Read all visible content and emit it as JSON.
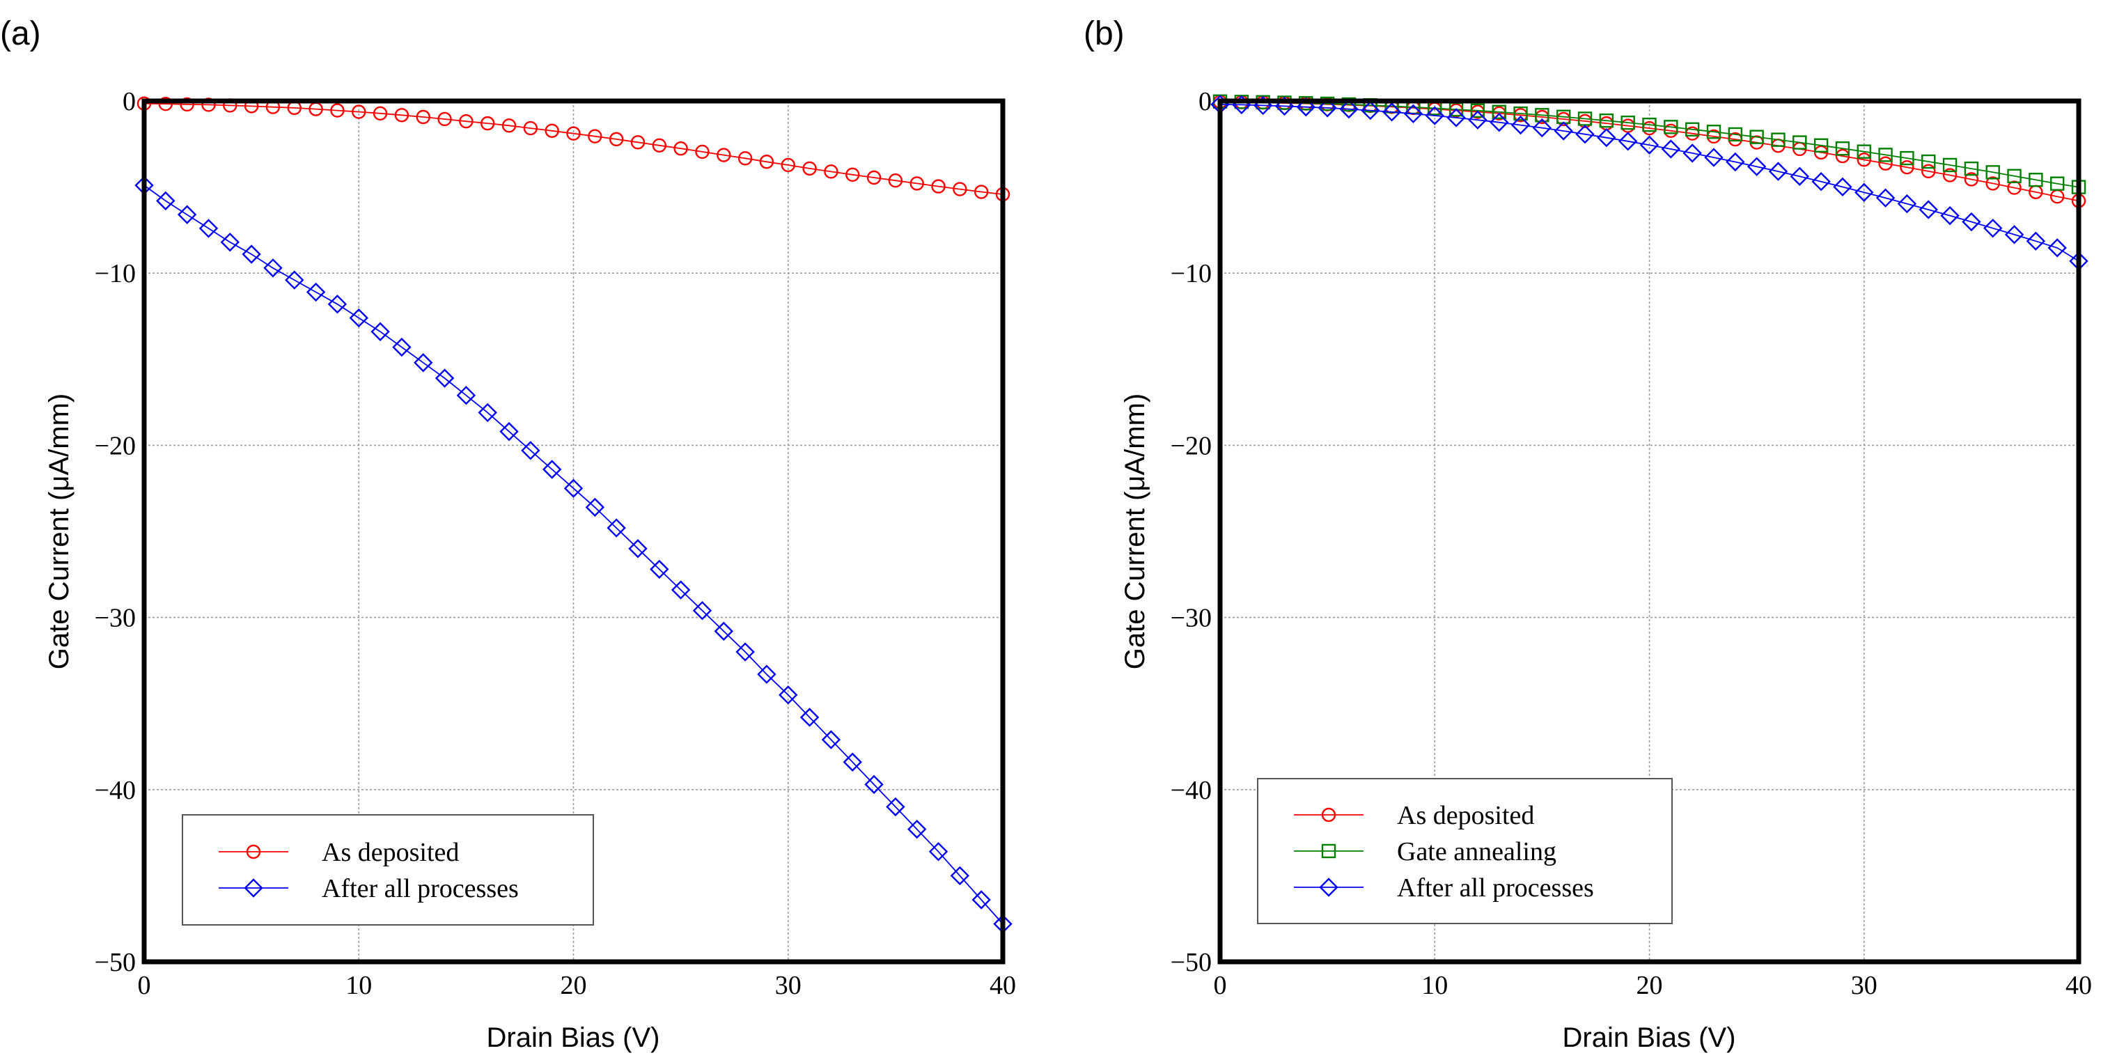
{
  "chart_data": [
    {
      "type": "line",
      "panel_label": "(a)",
      "xlabel": "Drain Bias (V)",
      "ylabel": "Gate Current (μA/mm)",
      "xlim": [
        0,
        40
      ],
      "ylim": [
        -50,
        0
      ],
      "x_ticks": [
        0,
        10,
        20,
        30,
        40
      ],
      "y_ticks": [
        0,
        -10,
        -20,
        -30,
        -40,
        -50
      ],
      "x_tick_labels": [
        "0",
        "10",
        "20",
        "30",
        "40"
      ],
      "y_tick_labels": [
        "0",
        "−10",
        "−20",
        "−30",
        "−40",
        "−50"
      ],
      "grid": true,
      "legend_position": "lower-left",
      "x": [
        0,
        1,
        2,
        3,
        4,
        5,
        6,
        7,
        8,
        9,
        10,
        11,
        12,
        13,
        14,
        15,
        16,
        17,
        18,
        19,
        20,
        21,
        22,
        23,
        24,
        25,
        26,
        27,
        28,
        29,
        30,
        31,
        32,
        33,
        34,
        35,
        36,
        37,
        38,
        39,
        40
      ],
      "series": [
        {
          "name": "As deposited",
          "color": "#ff0000",
          "marker": "circle",
          "values": [
            -0.15,
            -0.17,
            -0.2,
            -0.22,
            -0.26,
            -0.3,
            -0.35,
            -0.4,
            -0.47,
            -0.55,
            -0.63,
            -0.72,
            -0.82,
            -0.93,
            -1.05,
            -1.18,
            -1.3,
            -1.43,
            -1.58,
            -1.73,
            -1.89,
            -2.05,
            -2.22,
            -2.4,
            -2.58,
            -2.76,
            -2.95,
            -3.14,
            -3.33,
            -3.53,
            -3.72,
            -3.92,
            -4.1,
            -4.28,
            -4.45,
            -4.62,
            -4.79,
            -4.96,
            -5.12,
            -5.28,
            -5.42
          ]
        },
        {
          "name": "After all processes",
          "color": "#0000ff",
          "marker": "diamond",
          "values": [
            -4.9,
            -5.8,
            -6.6,
            -7.4,
            -8.2,
            -8.9,
            -9.7,
            -10.4,
            -11.1,
            -11.8,
            -12.6,
            -13.4,
            -14.3,
            -15.2,
            -16.1,
            -17.1,
            -18.1,
            -19.2,
            -20.3,
            -21.4,
            -22.5,
            -23.6,
            -24.8,
            -26.0,
            -27.2,
            -28.4,
            -29.6,
            -30.8,
            -32.0,
            -33.3,
            -34.5,
            -35.8,
            -37.1,
            -38.4,
            -39.7,
            -41.0,
            -42.3,
            -43.6,
            -45.0,
            -46.4,
            -47.8
          ]
        }
      ]
    },
    {
      "type": "line",
      "panel_label": "(b)",
      "xlabel": "Drain Bias (V)",
      "ylabel": "Gate Current (μA/mm)",
      "xlim": [
        0,
        40
      ],
      "ylim": [
        -50,
        0
      ],
      "x_ticks": [
        0,
        10,
        20,
        30,
        40
      ],
      "y_ticks": [
        0,
        -10,
        -20,
        -30,
        -40,
        -50
      ],
      "x_tick_labels": [
        "0",
        "10",
        "20",
        "30",
        "40"
      ],
      "y_tick_labels": [
        "0",
        "−10",
        "−20",
        "−30",
        "−40",
        "−50"
      ],
      "grid": true,
      "legend_position": "lower-left",
      "x": [
        0,
        1,
        2,
        3,
        4,
        5,
        6,
        7,
        8,
        9,
        10,
        11,
        12,
        13,
        14,
        15,
        16,
        17,
        18,
        19,
        20,
        21,
        22,
        23,
        24,
        25,
        26,
        27,
        28,
        29,
        30,
        31,
        32,
        33,
        34,
        35,
        36,
        37,
        38,
        39,
        40
      ],
      "series": [
        {
          "name": "As deposited",
          "color": "#ff0000",
          "marker": "circle",
          "values": [
            -0.05,
            -0.07,
            -0.09,
            -0.12,
            -0.15,
            -0.19,
            -0.23,
            -0.28,
            -0.34,
            -0.4,
            -0.47,
            -0.55,
            -0.63,
            -0.72,
            -0.82,
            -0.93,
            -1.05,
            -1.17,
            -1.3,
            -1.44,
            -1.58,
            -1.73,
            -1.89,
            -2.06,
            -2.23,
            -2.41,
            -2.6,
            -2.79,
            -2.99,
            -3.2,
            -3.41,
            -3.63,
            -3.85,
            -4.08,
            -4.31,
            -4.55,
            -4.79,
            -5.04,
            -5.29,
            -5.55,
            -5.8
          ]
        },
        {
          "name": "Gate annealing",
          "color": "#008000",
          "marker": "square",
          "values": [
            -0.03,
            -0.05,
            -0.07,
            -0.1,
            -0.13,
            -0.16,
            -0.2,
            -0.25,
            -0.3,
            -0.36,
            -0.42,
            -0.49,
            -0.56,
            -0.64,
            -0.73,
            -0.82,
            -0.92,
            -1.03,
            -1.14,
            -1.26,
            -1.38,
            -1.51,
            -1.65,
            -1.79,
            -1.94,
            -2.09,
            -2.25,
            -2.41,
            -2.58,
            -2.76,
            -2.94,
            -3.13,
            -3.32,
            -3.52,
            -3.72,
            -3.93,
            -4.14,
            -4.36,
            -4.58,
            -4.8,
            -5.0
          ]
        },
        {
          "name": "After all processes",
          "color": "#0000ff",
          "marker": "diamond",
          "values": [
            -0.2,
            -0.22,
            -0.26,
            -0.3,
            -0.35,
            -0.4,
            -0.47,
            -0.55,
            -0.64,
            -0.74,
            -0.85,
            -0.97,
            -1.1,
            -1.24,
            -1.4,
            -1.56,
            -1.74,
            -1.93,
            -2.13,
            -2.34,
            -2.56,
            -2.79,
            -3.03,
            -3.28,
            -3.54,
            -3.81,
            -4.09,
            -4.38,
            -4.68,
            -4.99,
            -5.31,
            -5.63,
            -5.97,
            -6.31,
            -6.66,
            -7.02,
            -7.39,
            -7.76,
            -8.14,
            -8.53,
            -9.3
          ]
        }
      ]
    }
  ]
}
